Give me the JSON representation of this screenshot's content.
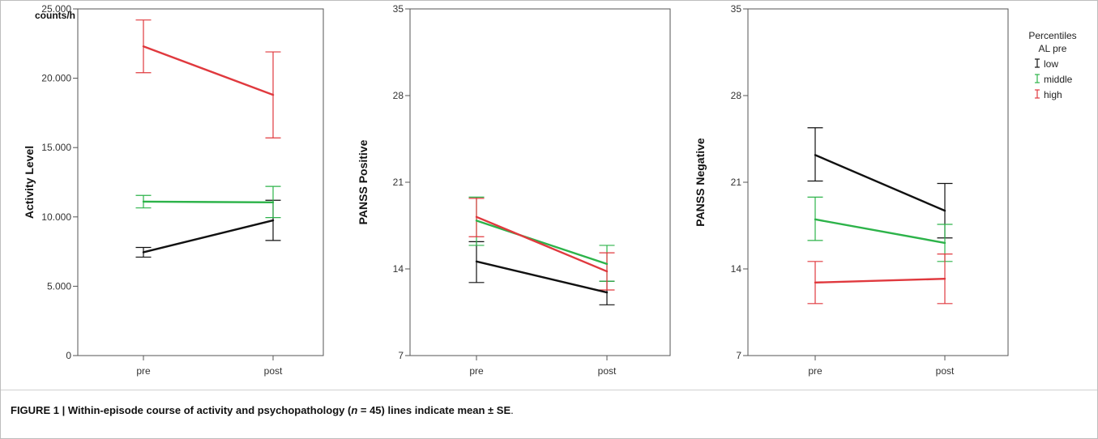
{
  "caption": {
    "label": "FIGURE 1 | ",
    "text_a": "Within-episode course of activity and psychopathology (",
    "n_var": "n",
    "text_b": " = 45) lines indicate mean ± SE",
    "end": "."
  },
  "chart_data": [
    {
      "type": "line",
      "ylabel": "Activity Level",
      "unit_label": "counts/h",
      "categories": [
        "pre",
        "post"
      ],
      "ylim": [
        0,
        25000
      ],
      "yticks": [
        0,
        5000,
        10000,
        15000,
        20000,
        25000
      ],
      "ytick_labels": [
        "0",
        "5.000",
        "10.000",
        "15.000",
        "20.000",
        "25.000"
      ],
      "series": [
        {
          "name": "low",
          "color": "#111111",
          "values": [
            7450,
            9750
          ],
          "lower": [
            7100,
            8300
          ],
          "upper": [
            7800,
            11200
          ]
        },
        {
          "name": "middle",
          "color": "#2db34a",
          "values": [
            11100,
            11050
          ],
          "lower": [
            10650,
            9950
          ],
          "upper": [
            11550,
            12200
          ]
        },
        {
          "name": "high",
          "color": "#e0393e",
          "values": [
            22300,
            18800
          ],
          "lower": [
            20400,
            15700
          ],
          "upper": [
            24200,
            21900
          ]
        }
      ]
    },
    {
      "type": "line",
      "ylabel": "PANSS Positive",
      "unit_label": "",
      "categories": [
        "pre",
        "post"
      ],
      "ylim": [
        7,
        35
      ],
      "yticks": [
        7,
        14,
        21,
        28,
        35
      ],
      "ytick_labels": [
        "7",
        "14",
        "21",
        "28",
        "35"
      ],
      "series": [
        {
          "name": "low",
          "color": "#111111",
          "values": [
            14.6,
            12.1
          ],
          "lower": [
            12.9,
            11.1
          ],
          "upper": [
            16.2,
            13.0
          ]
        },
        {
          "name": "middle",
          "color": "#2db34a",
          "values": [
            17.9,
            14.4
          ],
          "lower": [
            15.9,
            13.0
          ],
          "upper": [
            19.8,
            15.9
          ]
        },
        {
          "name": "high",
          "color": "#e0393e",
          "values": [
            18.2,
            13.8
          ],
          "lower": [
            16.6,
            12.3
          ],
          "upper": [
            19.7,
            15.3
          ]
        }
      ]
    },
    {
      "type": "line",
      "ylabel": "PANSS Negative",
      "unit_label": "",
      "categories": [
        "pre",
        "post"
      ],
      "ylim": [
        7,
        35
      ],
      "yticks": [
        7,
        14,
        21,
        28,
        35
      ],
      "ytick_labels": [
        "7",
        "14",
        "21",
        "28",
        "35"
      ],
      "series": [
        {
          "name": "low",
          "color": "#111111",
          "values": [
            23.2,
            18.7
          ],
          "lower": [
            21.1,
            16.5
          ],
          "upper": [
            25.4,
            20.9
          ]
        },
        {
          "name": "middle",
          "color": "#2db34a",
          "values": [
            18.0,
            16.1
          ],
          "lower": [
            16.3,
            14.6
          ],
          "upper": [
            19.8,
            17.6
          ]
        },
        {
          "name": "high",
          "color": "#e0393e",
          "values": [
            12.9,
            13.2
          ],
          "lower": [
            11.2,
            11.2
          ],
          "upper": [
            14.6,
            15.2
          ]
        }
      ]
    }
  ],
  "legend": {
    "title_line1": "Percentiles",
    "title_line2": "AL pre",
    "placement": "top-right",
    "items": [
      {
        "label": "low",
        "color": "#111111"
      },
      {
        "label": "middle",
        "color": "#2db34a"
      },
      {
        "label": "high",
        "color": "#e0393e"
      }
    ]
  }
}
